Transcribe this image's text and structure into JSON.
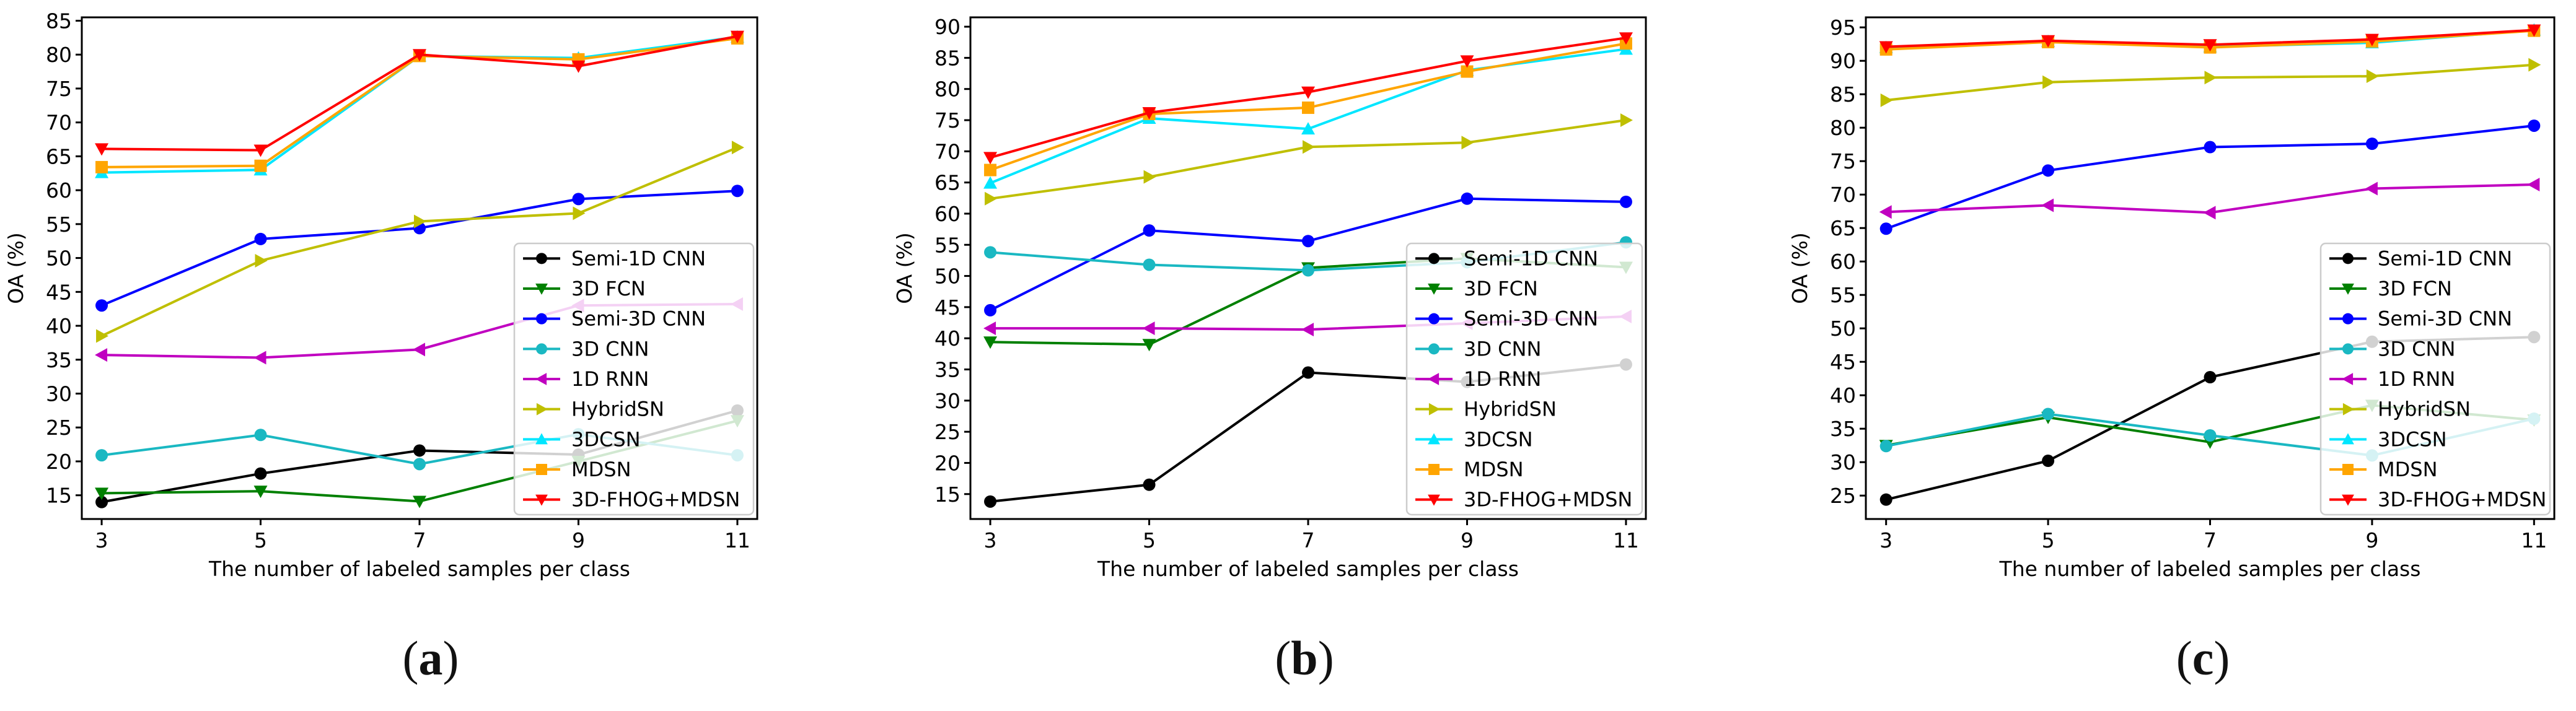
{
  "chart_data": [
    {
      "type": "line",
      "panel_label": "a",
      "title": "",
      "xlabel": "The number of labeled samples per class",
      "ylabel": "OA (%)",
      "x": [
        3,
        5,
        7,
        9,
        11
      ],
      "xlim": [
        2.75,
        11.25
      ],
      "ylim": [
        11.5,
        85.5
      ],
      "yticks": [
        15,
        20,
        25,
        30,
        35,
        40,
        45,
        50,
        55,
        60,
        65,
        70,
        75,
        80,
        85
      ],
      "legend_position": "lower-right",
      "series": [
        {
          "name": "Semi-1D CNN",
          "color": "#000000",
          "marker": "circle",
          "values": [
            14.0,
            18.2,
            21.6,
            21.0,
            27.5
          ]
        },
        {
          "name": "3D FCN",
          "color": "#008000",
          "marker": "triangle-down",
          "values": [
            15.3,
            15.6,
            14.1,
            20.0,
            26.0
          ]
        },
        {
          "name": "Semi-3D CNN",
          "color": "#0000ff",
          "marker": "circle",
          "values": [
            43.0,
            52.8,
            54.4,
            58.7,
            59.9
          ]
        },
        {
          "name": "3D CNN",
          "color": "#1ab8c2",
          "marker": "circle",
          "values": [
            20.9,
            23.9,
            19.6,
            24.0,
            20.9
          ]
        },
        {
          "name": "1D RNN",
          "color": "#c000c0",
          "marker": "triangle-left",
          "values": [
            35.7,
            35.3,
            36.5,
            43.0,
            43.2
          ]
        },
        {
          "name": "HybridSN",
          "color": "#bfbf00",
          "marker": "triangle-right",
          "values": [
            38.5,
            49.6,
            55.4,
            56.6,
            66.3
          ]
        },
        {
          "name": "3DCSN",
          "color": "#00e6ff",
          "marker": "triangle-up",
          "values": [
            62.6,
            63.0,
            79.8,
            79.5,
            82.6
          ]
        },
        {
          "name": "MDSN",
          "color": "#ffa500",
          "marker": "square",
          "values": [
            63.4,
            63.6,
            79.8,
            79.3,
            82.4
          ]
        },
        {
          "name": "3D-FHOG+MDSN",
          "color": "#ff0000",
          "marker": "triangle-down",
          "values": [
            66.1,
            65.9,
            80.0,
            78.3,
            82.7
          ]
        }
      ]
    },
    {
      "type": "line",
      "panel_label": "b",
      "title": "",
      "xlabel": "The number of labeled samples per class",
      "ylabel": "OA (%)",
      "x": [
        3,
        5,
        7,
        9,
        11
      ],
      "xlim": [
        2.75,
        11.25
      ],
      "ylim": [
        11.0,
        91.5
      ],
      "yticks": [
        15,
        20,
        25,
        30,
        35,
        40,
        45,
        50,
        55,
        60,
        65,
        70,
        75,
        80,
        85,
        90
      ],
      "legend_position": "lower-right",
      "series": [
        {
          "name": "Semi-1D CNN",
          "color": "#000000",
          "marker": "circle",
          "values": [
            13.8,
            16.5,
            34.5,
            33.0,
            35.8
          ]
        },
        {
          "name": "3D FCN",
          "color": "#008000",
          "marker": "triangle-down",
          "values": [
            39.4,
            39.0,
            51.3,
            52.8,
            51.4
          ]
        },
        {
          "name": "Semi-3D CNN",
          "color": "#0000ff",
          "marker": "circle",
          "values": [
            44.5,
            57.3,
            55.6,
            62.4,
            61.9
          ]
        },
        {
          "name": "3D CNN",
          "color": "#1ab8c2",
          "marker": "circle",
          "values": [
            53.8,
            51.8,
            50.9,
            52.2,
            55.4
          ]
        },
        {
          "name": "1D RNN",
          "color": "#c000c0",
          "marker": "triangle-left",
          "values": [
            41.6,
            41.6,
            41.4,
            42.4,
            43.5
          ]
        },
        {
          "name": "HybridSN",
          "color": "#bfbf00",
          "marker": "triangle-right",
          "values": [
            62.4,
            65.9,
            70.7,
            71.4,
            75.0
          ]
        },
        {
          "name": "3DCSN",
          "color": "#00e6ff",
          "marker": "triangle-up",
          "values": [
            64.9,
            75.3,
            73.6,
            83.0,
            86.4
          ]
        },
        {
          "name": "MDSN",
          "color": "#ffa500",
          "marker": "square",
          "values": [
            67.0,
            76.0,
            77.0,
            82.8,
            87.3
          ]
        },
        {
          "name": "3D-FHOG+MDSN",
          "color": "#ff0000",
          "marker": "triangle-down",
          "values": [
            69.0,
            76.2,
            79.5,
            84.5,
            88.2
          ]
        }
      ]
    },
    {
      "type": "line",
      "panel_label": "c",
      "title": "",
      "xlabel": "The number of labeled samples per class",
      "ylabel": "OA (%)",
      "x": [
        3,
        5,
        7,
        9,
        11
      ],
      "xlim": [
        2.75,
        11.25
      ],
      "ylim": [
        21.5,
        96.5
      ],
      "yticks": [
        25,
        30,
        35,
        40,
        45,
        50,
        55,
        60,
        65,
        70,
        75,
        80,
        85,
        90,
        95
      ],
      "legend_position": "lower-right",
      "series": [
        {
          "name": "Semi-1D CNN",
          "color": "#000000",
          "marker": "circle",
          "values": [
            24.4,
            30.2,
            42.7,
            48.0,
            48.7
          ]
        },
        {
          "name": "3D FCN",
          "color": "#008000",
          "marker": "triangle-down",
          "values": [
            32.5,
            36.7,
            33.0,
            38.5,
            36.3
          ]
        },
        {
          "name": "Semi-3D CNN",
          "color": "#0000ff",
          "marker": "circle",
          "values": [
            64.9,
            73.6,
            77.1,
            77.6,
            80.3
          ]
        },
        {
          "name": "3D CNN",
          "color": "#1ab8c2",
          "marker": "circle",
          "values": [
            32.4,
            37.2,
            34.0,
            31.0,
            36.5
          ]
        },
        {
          "name": "1D RNN",
          "color": "#c000c0",
          "marker": "triangle-left",
          "values": [
            67.4,
            68.4,
            67.3,
            70.9,
            71.5
          ]
        },
        {
          "name": "HybridSN",
          "color": "#bfbf00",
          "marker": "triangle-right",
          "values": [
            84.1,
            86.8,
            87.5,
            87.7,
            89.4
          ]
        },
        {
          "name": "3DCSN",
          "color": "#00e6ff",
          "marker": "triangle-up",
          "values": [
            92.0,
            92.9,
            92.1,
            92.7,
            94.6
          ]
        },
        {
          "name": "MDSN",
          "color": "#ffa500",
          "marker": "square",
          "values": [
            91.7,
            92.8,
            92.0,
            92.9,
            94.5
          ]
        },
        {
          "name": "3D-FHOG+MDSN",
          "color": "#ff0000",
          "marker": "triangle-down",
          "values": [
            92.1,
            93.0,
            92.4,
            93.2,
            94.6
          ]
        }
      ]
    }
  ]
}
